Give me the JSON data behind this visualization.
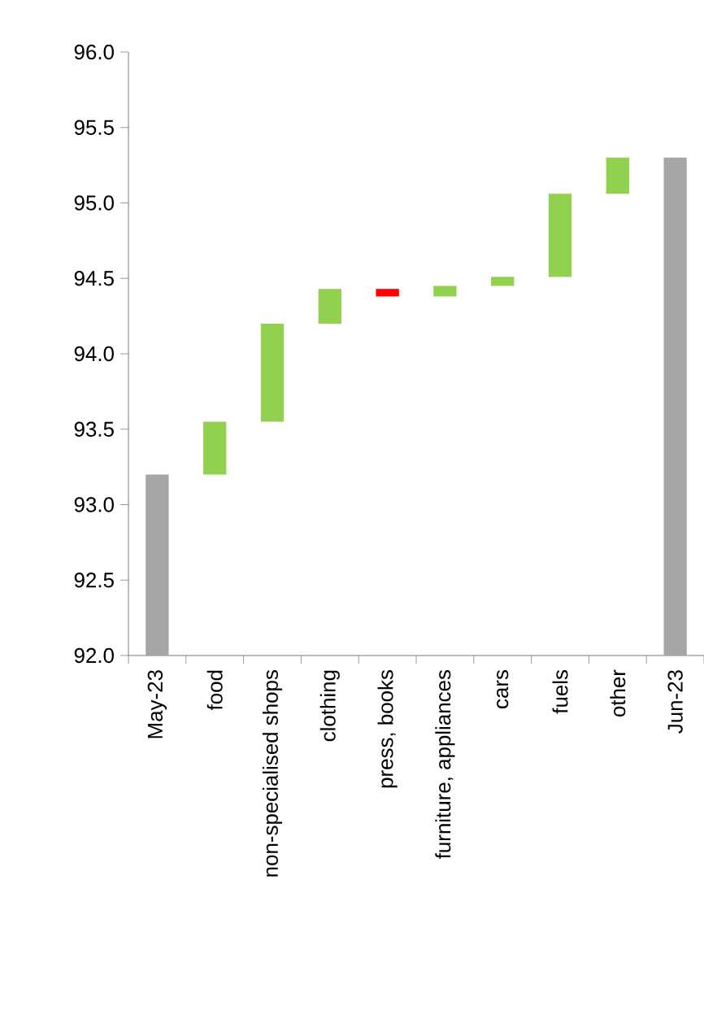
{
  "chart_data": {
    "type": "bar",
    "categories": [
      "May-23",
      "food",
      "non-specialised shops",
      "clothing",
      "press, books",
      "furniture, appliances",
      "cars",
      "fuels",
      "other",
      "Jun-23"
    ],
    "values": [
      93.2,
      0.35,
      0.65,
      0.23,
      -0.05,
      0.07,
      0.06,
      0.55,
      0.24,
      95.3
    ],
    "base": [
      null,
      93.2,
      93.55,
      94.2,
      94.43,
      94.38,
      94.45,
      94.51,
      95.06,
      null
    ],
    "colors": [
      "#a6a6a6",
      "#92d050",
      "#92d050",
      "#92d050",
      "#ff0000",
      "#92d050",
      "#92d050",
      "#92d050",
      "#92d050",
      "#a6a6a6"
    ],
    "ylim": [
      92,
      96
    ],
    "yticks": [
      {
        "value": 92,
        "label": "92.0"
      },
      {
        "value": 92.5,
        "label": "92.5"
      },
      {
        "value": 93,
        "label": "93.0"
      },
      {
        "value": 93.5,
        "label": "93.5"
      },
      {
        "value": 94,
        "label": "94.0"
      },
      {
        "value": 94.5,
        "label": "94.5"
      },
      {
        "value": 95,
        "label": "95.0"
      },
      {
        "value": 95.5,
        "label": "95.5"
      },
      {
        "value": 96,
        "label": "96.0"
      }
    ]
  }
}
